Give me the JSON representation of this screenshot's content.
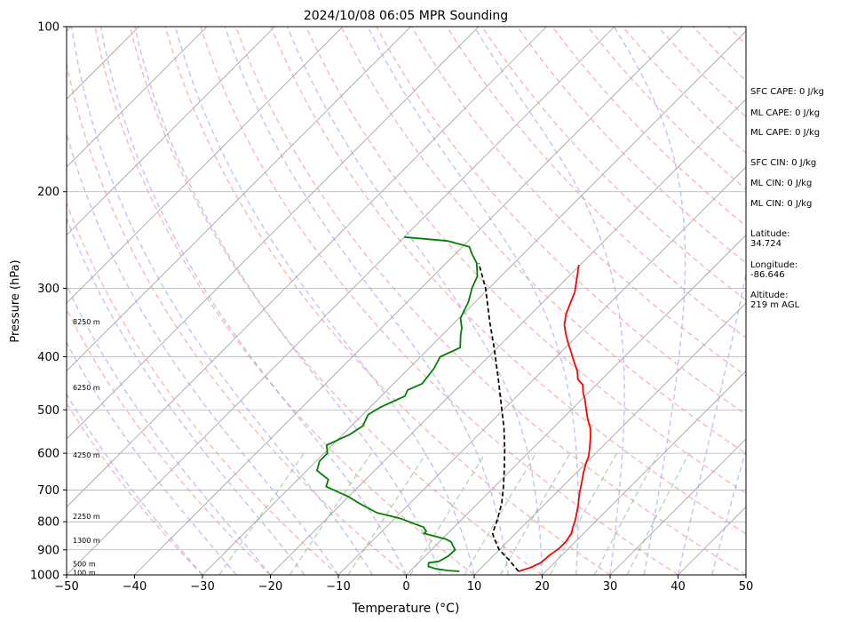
{
  "chart_data": {
    "type": "line",
    "title": "2024/10/08 06:05 MPR Sounding",
    "xlabel": "Temperature (°C)",
    "ylabel": "Pressure (hPa)",
    "xlim": [
      -50,
      50
    ],
    "ylim": [
      1000,
      100
    ],
    "y_scale": "log",
    "grid": true,
    "x_ticks": [
      "−50",
      "−40",
      "−30",
      "−20",
      "−10",
      "0",
      "10",
      "20",
      "30",
      "40",
      "50"
    ],
    "y_ticks": [
      {
        "p": 100,
        "label": "100"
      },
      {
        "p": 200,
        "label": "200"
      },
      {
        "p": 300,
        "label": "300"
      },
      {
        "p": 400,
        "label": "400"
      },
      {
        "p": 500,
        "label": "500"
      },
      {
        "p": 600,
        "label": "600"
      },
      {
        "p": 700,
        "label": "700"
      },
      {
        "p": 800,
        "label": "800"
      },
      {
        "p": 900,
        "label": "900"
      },
      {
        "p": 1000,
        "label": "1000"
      }
    ],
    "height_labels": [
      {
        "p": 345,
        "label": "8250 m"
      },
      {
        "p": 455,
        "label": "6250 m"
      },
      {
        "p": 604,
        "label": "4250 m"
      },
      {
        "p": 782,
        "label": "2250 m"
      },
      {
        "p": 865,
        "label": "1300 m"
      },
      {
        "p": 955,
        "label": "500 m"
      },
      {
        "p": 990,
        "label": "100 m"
      }
    ],
    "series": [
      {
        "key": "temperature",
        "color": "#ff0000",
        "style": "solid",
        "points": [
          [
            16,
            985
          ],
          [
            17.2,
            970
          ],
          [
            18,
            950
          ],
          [
            18.2,
            920
          ],
          [
            18.6,
            895
          ],
          [
            18.6,
            870
          ],
          [
            18.2,
            840
          ],
          [
            17.4,
            815
          ],
          [
            17,
            800
          ],
          [
            16.3,
            780
          ],
          [
            15,
            745
          ],
          [
            13.5,
            710
          ],
          [
            12.3,
            680
          ],
          [
            11,
            650
          ],
          [
            10,
            625
          ],
          [
            9.5,
            610
          ],
          [
            8.5,
            590
          ],
          [
            6.8,
            560
          ],
          [
            5.5,
            540
          ],
          [
            3.8,
            520
          ],
          [
            2.2,
            500
          ],
          [
            0.6,
            480
          ],
          [
            -0.8,
            465
          ],
          [
            -2,
            450
          ],
          [
            -3.5,
            440
          ],
          [
            -4.8,
            425
          ],
          [
            -6.5,
            410
          ],
          [
            -8.2,
            395
          ],
          [
            -10,
            380
          ],
          [
            -11.8,
            365
          ],
          [
            -13.5,
            350
          ],
          [
            -14.8,
            335
          ],
          [
            -15.8,
            320
          ],
          [
            -16.8,
            305
          ],
          [
            -18.8,
            285
          ],
          [
            -20.2,
            272
          ]
        ]
      },
      {
        "key": "dewpoint",
        "color": "#008000",
        "style": "solid",
        "points": [
          [
            7.3,
            985
          ],
          [
            5.5,
            982
          ],
          [
            3.5,
            975
          ],
          [
            2,
            965
          ],
          [
            1.5,
            950
          ],
          [
            2.8,
            945
          ],
          [
            3.4,
            925
          ],
          [
            3.5,
            900
          ],
          [
            2.6,
            885
          ],
          [
            1.7,
            870
          ],
          [
            0.5,
            860
          ],
          [
            -1.5,
            850
          ],
          [
            -3.5,
            840
          ],
          [
            -3.5,
            832
          ],
          [
            -4,
            825
          ],
          [
            -4.5,
            818
          ],
          [
            -5.5,
            812
          ],
          [
            -9,
            790
          ],
          [
            -13.5,
            770
          ],
          [
            -17.5,
            740
          ],
          [
            -20,
            720
          ],
          [
            -24.8,
            690
          ],
          [
            -25.5,
            670
          ],
          [
            -28.5,
            645
          ],
          [
            -29.5,
            620
          ],
          [
            -29.5,
            600
          ],
          [
            -30.8,
            580
          ],
          [
            -29,
            555
          ],
          [
            -28.3,
            535
          ],
          [
            -29.2,
            510
          ],
          [
            -28.5,
            495
          ],
          [
            -27.5,
            483
          ],
          [
            -26.5,
            472
          ],
          [
            -27,
            460
          ],
          [
            -25.8,
            448
          ],
          [
            -26.3,
            420
          ],
          [
            -27.1,
            400
          ],
          [
            -25.5,
            385
          ],
          [
            -27.3,
            365
          ],
          [
            -28.1,
            355
          ],
          [
            -29.8,
            340
          ],
          [
            -31,
            318
          ],
          [
            -32.5,
            300
          ],
          [
            -33.5,
            285
          ],
          [
            -35.5,
            270
          ],
          [
            -37.5,
            260
          ],
          [
            -39,
            252
          ],
          [
            -43,
            246
          ],
          [
            -50,
            242
          ]
        ]
      },
      {
        "key": "parcel",
        "color": "#000000",
        "style": "dashed",
        "points": [
          [
            16,
            985
          ],
          [
            13,
            940
          ],
          [
            10,
            900
          ],
          [
            7.8,
            862
          ],
          [
            6.6,
            840
          ],
          [
            5.2,
            790
          ],
          [
            3.5,
            740
          ],
          [
            1.3,
            690
          ],
          [
            -1.2,
            640
          ],
          [
            -4,
            590
          ],
          [
            -7.2,
            540
          ],
          [
            -11,
            490
          ],
          [
            -15.2,
            440
          ],
          [
            -20.5,
            385
          ],
          [
            -25,
            345
          ],
          [
            -30.5,
            300
          ],
          [
            -35.2,
            270
          ]
        ]
      }
    ]
  },
  "side_panel": [
    {
      "text": "SFC CAPE: 0 J/kg",
      "y": 98
    },
    {
      "text": "ML CAPE: 0 J/kg",
      "y": 122
    },
    {
      "text": "ML CAPE: 0 J/kg",
      "y": 144
    },
    {
      "text": "SFC CIN: 0 J/kg",
      "y": 178
    },
    {
      "text": "ML CIN: 0 J/kg",
      "y": 201
    },
    {
      "text": "ML CIN: 0 J/kg",
      "y": 224
    },
    {
      "text": "Latitude:\n34.724",
      "y": 258
    },
    {
      "text": "Longitude:\n-86.646",
      "y": 293
    },
    {
      "text": "Altitude:\n219 m AGL",
      "y": 327
    }
  ]
}
